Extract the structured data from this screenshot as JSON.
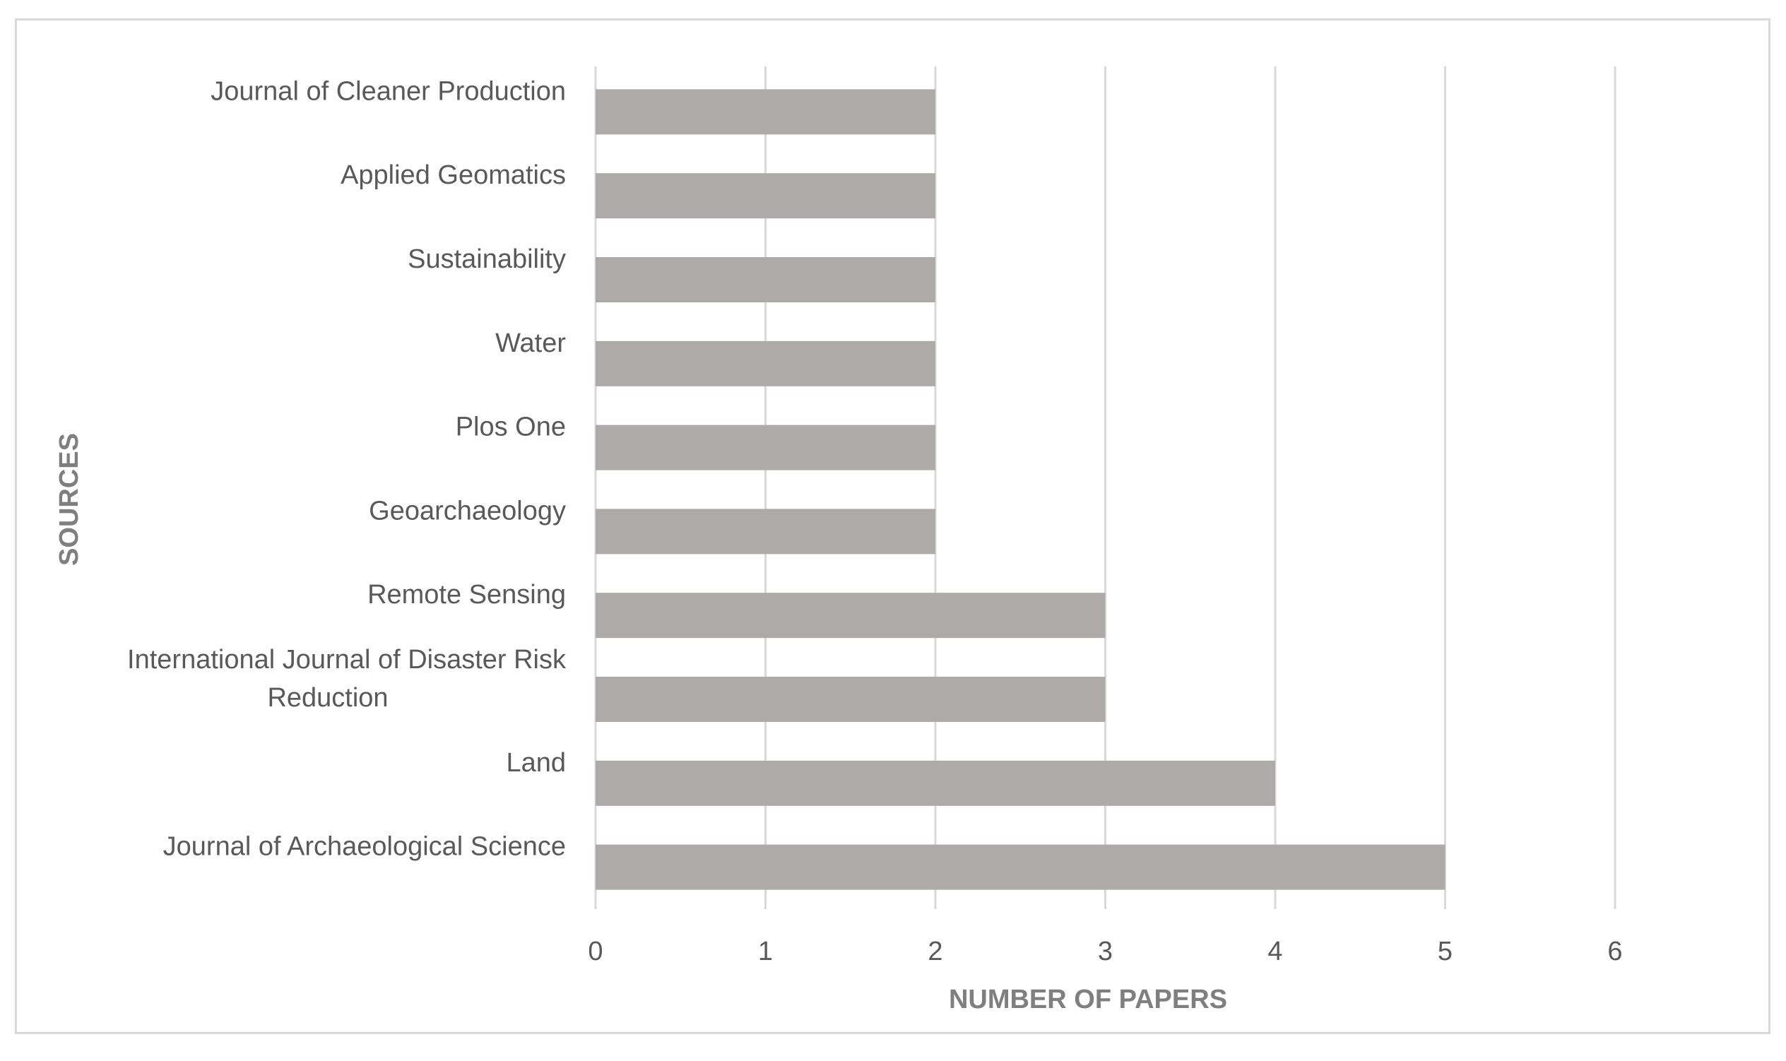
{
  "chart_data": {
    "type": "bar",
    "orientation": "horizontal",
    "categories": [
      "Journal of Cleaner Production",
      "Applied Geomatics",
      "Sustainability",
      "Water",
      "Plos One",
      "Geoarchaeology",
      "Remote Sensing",
      "International Journal of Disaster Risk Reduction",
      "Land",
      "Journal of Archaeological Science"
    ],
    "category_label_lines": [
      [
        "Journal of Cleaner Production"
      ],
      [
        "Applied Geomatics"
      ],
      [
        "Sustainability"
      ],
      [
        "Water"
      ],
      [
        "Plos One"
      ],
      [
        "Geoarchaeology"
      ],
      [
        "Remote Sensing"
      ],
      [
        "International Journal of Disaster Risk",
        "Reduction"
      ],
      [
        "Land"
      ],
      [
        "Journal of Archaeological Science"
      ]
    ],
    "values": [
      2,
      2,
      2,
      2,
      2,
      2,
      3,
      3,
      4,
      5
    ],
    "xlabel": "NUMBER OF PAPERS",
    "ylabel": "SOURCES",
    "xlim": [
      0,
      6
    ],
    "xticks": [
      "0",
      "1",
      "2",
      "3",
      "4",
      "5",
      "6"
    ],
    "grid": "vertical",
    "bar_color": "#aeaaaa",
    "grid_color": "#d9d9d9",
    "text_color": "#595959"
  }
}
